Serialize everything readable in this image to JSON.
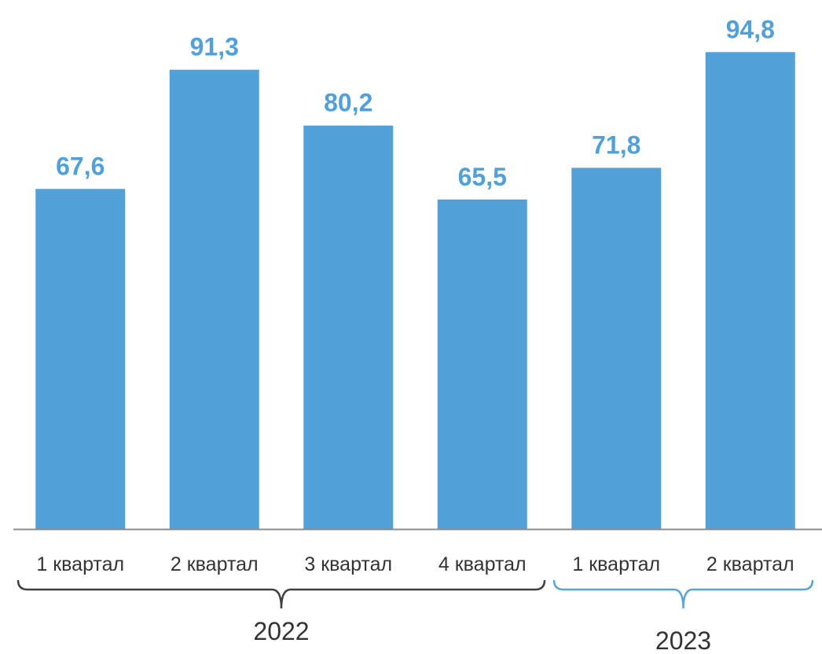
{
  "chart_data": {
    "type": "bar",
    "title": "",
    "xlabel": "",
    "ylabel": "",
    "ylim": [
      0,
      100
    ],
    "grid": false,
    "legend": "none",
    "categories": [
      "1 квартал",
      "2 квартал",
      "3 квартал",
      "4 квартал",
      "1 квартал",
      "2 квартал"
    ],
    "values": [
      67.6,
      91.3,
      80.2,
      65.5,
      71.8,
      94.8
    ],
    "value_labels": [
      "67,6",
      "91,3",
      "80,2",
      "65,5",
      "71,8",
      "94,8"
    ],
    "groups": [
      {
        "label": "2022",
        "start": 0,
        "end": 3,
        "color": "#404040"
      },
      {
        "label": "2023",
        "start": 4,
        "end": 5,
        "color": "#5ba3d6"
      }
    ],
    "colors": {
      "bar": "#52a0d8",
      "value_label": "#52a0d8",
      "axis": "#8c8c8c"
    }
  }
}
